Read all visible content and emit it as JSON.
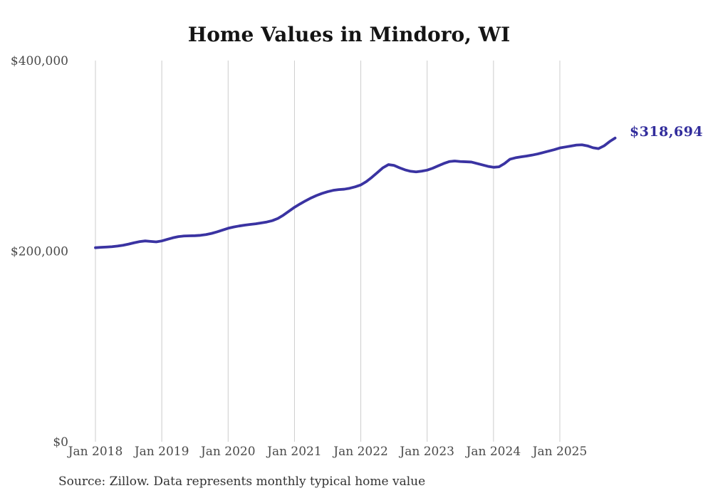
{
  "page": {
    "title": "Home Values in Mindoro, WI",
    "source_note": "Source: Zillow. Data represents monthly typical home value",
    "final_value_label": "$318,694"
  },
  "colors": {
    "line": "#3a33a2",
    "annotation": "#322d9c",
    "gridline": "#cccccc",
    "axis_text": "#4a4a4a",
    "title_text": "#141414",
    "source_text": "#333333",
    "background": "#ffffff"
  },
  "chart_data": {
    "type": "line",
    "title": "Home Values in Mindoro, WI",
    "xlabel": "",
    "ylabel": "",
    "legend": "none",
    "grid": "vertical-only",
    "x_axis": {
      "tick_labels": [
        "Jan 2018",
        "Jan 2019",
        "Jan 2020",
        "Jan 2021",
        "Jan 2022",
        "Jan 2023",
        "Jan 2024",
        "Jan 2025"
      ],
      "start": "Jan 2018",
      "end": "Nov 2025",
      "frequency": "monthly"
    },
    "y_axis": {
      "tick_labels": [
        "$0",
        "$200,000",
        "$400,000"
      ],
      "tick_values": [
        0,
        200000,
        400000
      ],
      "range": [
        0,
        400000
      ]
    },
    "annotation": {
      "text": "$318,694",
      "value": 318694,
      "position": "end-of-line"
    },
    "series": [
      {
        "name": "Monthly typical home value",
        "start": "2018-01",
        "values": [
          203600,
          204000,
          204300,
          204700,
          205300,
          206200,
          207400,
          208800,
          210000,
          210700,
          210200,
          209700,
          210700,
          212400,
          214000,
          215200,
          215900,
          216100,
          216200,
          216600,
          217400,
          218600,
          220200,
          222100,
          224000,
          225300,
          226400,
          227300,
          228000,
          228700,
          229600,
          230600,
          232000,
          234300,
          237800,
          241900,
          246000,
          249500,
          252800,
          255800,
          258400,
          260600,
          262400,
          263800,
          264600,
          265000,
          266000,
          267500,
          269500,
          273000,
          277500,
          282500,
          287500,
          290800,
          290000,
          287500,
          285300,
          283800,
          283200,
          283900,
          285000,
          287000,
          289500,
          292000,
          294000,
          294600,
          294000,
          293800,
          293500,
          292000,
          290500,
          289000,
          288000,
          288500,
          292000,
          296500,
          298000,
          299000,
          299800,
          300800,
          302000,
          303500,
          305000,
          306500,
          308300,
          309300,
          310300,
          311300,
          311600,
          310500,
          308500,
          307600,
          310500,
          315000,
          318694
        ]
      }
    ]
  }
}
